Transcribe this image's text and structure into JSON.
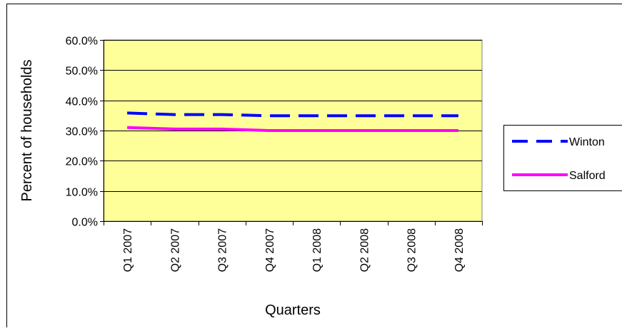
{
  "chart_data": {
    "type": "line",
    "categories": [
      "Q1 2007",
      "Q2 2007",
      "Q3 2007",
      "Q4 2007",
      "Q1 2008",
      "Q2 2008",
      "Q3 2008",
      "Q4 2008"
    ],
    "series": [
      {
        "name": "Winton",
        "values": [
          35.8,
          35.3,
          35.3,
          34.9,
          34.9,
          34.9,
          34.9,
          34.9
        ],
        "color": "#0000ff",
        "line_style": "dashed"
      },
      {
        "name": "Salford",
        "values": [
          31.0,
          30.5,
          30.5,
          30.0,
          30.0,
          30.0,
          30.0,
          30.0
        ],
        "color": "#ff00ff",
        "line_style": "solid"
      }
    ],
    "xlabel": "Quarters",
    "ylabel": "Percent of households",
    "ylim": [
      0,
      60
    ],
    "y_ticks": [
      0,
      10,
      20,
      30,
      40,
      50,
      60
    ],
    "y_tick_labels": [
      "0.0%",
      "10.0%",
      "20.0%",
      "30.0%",
      "40.0%",
      "50.0%",
      "60.0%"
    ],
    "plot_background": "#ffff99",
    "grid": true,
    "legend_position": "right"
  }
}
